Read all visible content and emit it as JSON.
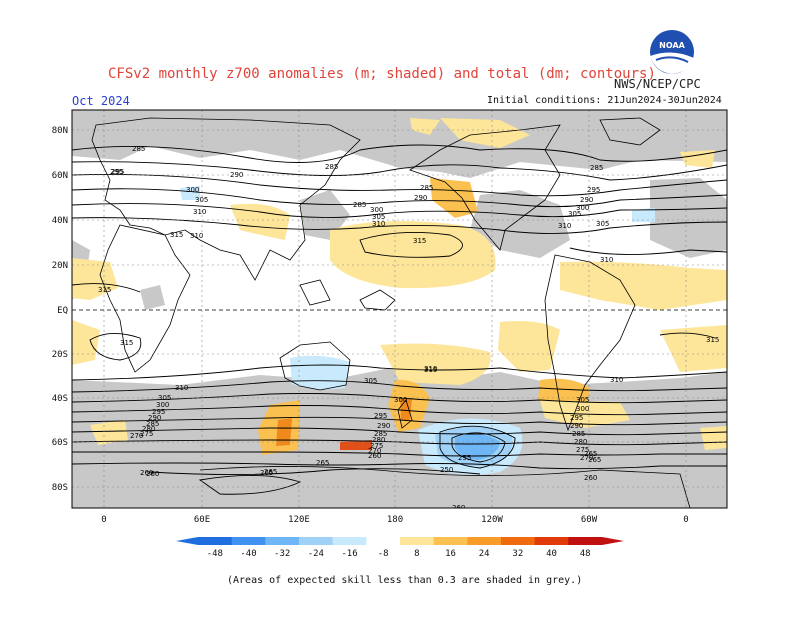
{
  "header": {
    "title": "CFSv2 monthly z700 anomalies (m; shaded) and total (dm; contours)",
    "month": "Oct 2024",
    "org": "NWS/NCEP/CPC",
    "initial_conditions": "Initial conditions: 21Jun2024-30Jun2024"
  },
  "logo": {
    "text": "NOAA"
  },
  "map": {
    "lat_labels": [
      "80N",
      "60N",
      "40N",
      "20N",
      "EQ",
      "20S",
      "40S",
      "60S",
      "80S"
    ],
    "lon_labels": [
      "0",
      "60E",
      "120E",
      "180",
      "120W",
      "60W",
      "0"
    ]
  },
  "contour_labels": [
    {
      "text": "285"
    },
    {
      "text": "295"
    },
    {
      "text": "290"
    },
    {
      "text": "285"
    },
    {
      "text": "285"
    },
    {
      "text": "290"
    },
    {
      "text": "295"
    },
    {
      "text": "300"
    },
    {
      "text": "305"
    },
    {
      "text": "310"
    },
    {
      "text": "285"
    },
    {
      "text": "290"
    },
    {
      "text": "305"
    },
    {
      "text": "310"
    },
    {
      "text": "300"
    },
    {
      "text": "305"
    },
    {
      "text": "310"
    },
    {
      "text": "315"
    },
    {
      "text": "315"
    },
    {
      "text": "285"
    },
    {
      "text": "295"
    },
    {
      "text": "300"
    },
    {
      "text": "305"
    },
    {
      "text": "310"
    },
    {
      "text": "315"
    },
    {
      "text": "315"
    },
    {
      "text": "315"
    },
    {
      "text": "315"
    },
    {
      "text": "310"
    },
    {
      "text": "305"
    },
    {
      "text": "300"
    },
    {
      "text": "295"
    },
    {
      "text": "290"
    },
    {
      "text": "285"
    },
    {
      "text": "280"
    },
    {
      "text": "275"
    },
    {
      "text": "270"
    },
    {
      "text": "265"
    },
    {
      "text": "260"
    },
    {
      "text": "265"
    },
    {
      "text": "260"
    },
    {
      "text": "255"
    },
    {
      "text": "250"
    },
    {
      "text": "260"
    },
    {
      "text": "310"
    },
    {
      "text": "305"
    },
    {
      "text": "300"
    },
    {
      "text": "295"
    },
    {
      "text": "290"
    },
    {
      "text": "285"
    },
    {
      "text": "280"
    },
    {
      "text": "275"
    },
    {
      "text": "270"
    },
    {
      "text": "265"
    },
    {
      "text": "305"
    },
    {
      "text": "300"
    },
    {
      "text": "295"
    },
    {
      "text": "290"
    },
    {
      "text": "285"
    },
    {
      "text": "280"
    },
    {
      "text": "275"
    },
    {
      "text": "270"
    },
    {
      "text": "265"
    },
    {
      "text": "260"
    },
    {
      "text": "310"
    },
    {
      "text": "310"
    },
    {
      "text": "265"
    },
    {
      "text": "260"
    }
  ],
  "colorbar": {
    "labels": [
      "-48",
      "-40",
      "-32",
      "-24",
      "-16",
      "-8",
      "8",
      "16",
      "24",
      "32",
      "40",
      "48"
    ],
    "colors": [
      "#1f6ee0",
      "#3f92f0",
      "#6eb6f6",
      "#a0d2f8",
      "#c8eafc",
      "#ffffff",
      "#fde69a",
      "#fbc150",
      "#f99b28",
      "#f06a10",
      "#e03a08",
      "#c01010"
    ]
  },
  "colors": {
    "skill_grey": "#c8c8c8",
    "positive_light": "#fde69a",
    "positive_mid": "#fbc150",
    "positive_strong": "#f08a1c",
    "positive_deep": "#e2501a",
    "negative_faint": "#c8eafc",
    "negative_light": "#a0d2f8",
    "negative_mid": "#6eb6f6"
  },
  "footnote": "(Areas of expected skill less than 0.3 are shaded in grey.)"
}
